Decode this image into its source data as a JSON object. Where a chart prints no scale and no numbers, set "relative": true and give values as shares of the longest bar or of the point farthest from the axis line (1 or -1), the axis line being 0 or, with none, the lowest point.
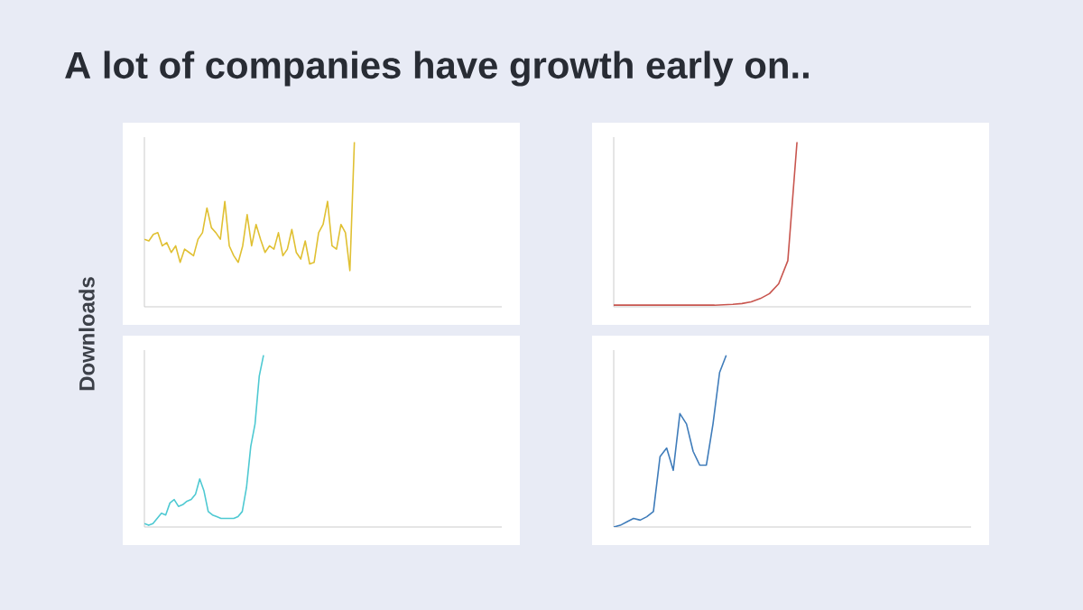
{
  "chart_data": [
    {
      "type": "line",
      "title": "A lot of companies have growth early on..",
      "annotations": [
        "Downloads"
      ],
      "relative": true,
      "categories": [
        null,
        null,
        null,
        null,
        null,
        null,
        null,
        null,
        null,
        null,
        null,
        null,
        null,
        null,
        null,
        null,
        null,
        null,
        null,
        null,
        null,
        null,
        null,
        null,
        null,
        null,
        null,
        null,
        null,
        null,
        null,
        null,
        null,
        null,
        null,
        null,
        null,
        null,
        null,
        null,
        null,
        null,
        null,
        null,
        null,
        null,
        null,
        null,
        null,
        null,
        null,
        null,
        null,
        null,
        null,
        null,
        null,
        null,
        null,
        null,
        null,
        null,
        null,
        null,
        null,
        null,
        null,
        null,
        null,
        null,
        null,
        null,
        null,
        null,
        null,
        null,
        null,
        null,
        null,
        null,
        null
      ],
      "series": [
        {
          "color": "#e0c032",
          "values": [
            0.41,
            0.4,
            0.44,
            0.45,
            0.37,
            0.39,
            0.33,
            0.37,
            0.27,
            0.35,
            0.33,
            0.31,
            0.41,
            0.45,
            0.6,
            0.48,
            0.45,
            0.41,
            0.64,
            0.37,
            0.31,
            0.27,
            0.37,
            0.56,
            0.37,
            0.5,
            0.41,
            0.33,
            0.37,
            0.35,
            0.45,
            0.31,
            0.35,
            0.47,
            0.33,
            0.29,
            0.4,
            0.26,
            0.27,
            0.45,
            0.5,
            0.64,
            0.37,
            0.35,
            0.5,
            0.45,
            0.22,
            1,
            null,
            null,
            null,
            null,
            null,
            null,
            null,
            null,
            null,
            null,
            null,
            null,
            null,
            null,
            null,
            null,
            null,
            null,
            null,
            null,
            null,
            null,
            null,
            null,
            null,
            null,
            null,
            null,
            null,
            null,
            null,
            null,
            null
          ]
        }
      ]
    },
    {
      "type": "line",
      "relative": true,
      "categories": [
        null,
        null,
        null,
        null,
        null,
        null,
        null,
        null,
        null,
        null,
        null,
        null,
        null,
        null,
        null,
        null,
        null,
        null,
        null,
        null,
        null,
        null,
        null,
        null,
        null,
        null,
        null,
        null,
        null,
        null,
        null,
        null,
        null,
        null,
        null,
        null,
        null,
        null,
        null,
        null
      ],
      "series": [
        {
          "color": "#c8554e",
          "values": [
            0.01,
            0.01,
            0.01,
            0.01,
            0.01,
            0.01,
            0.01,
            0.01,
            0.01,
            0.01,
            0.01,
            0.01,
            0.012,
            0.015,
            0.02,
            0.03,
            0.05,
            0.08,
            0.14,
            0.28,
            1,
            null,
            null,
            null,
            null,
            null,
            null,
            null,
            null,
            null,
            null,
            null,
            null,
            null,
            null,
            null,
            null,
            null,
            null,
            null
          ]
        }
      ]
    },
    {
      "type": "line",
      "relative": true,
      "categories": [
        null,
        null,
        null,
        null,
        null,
        null,
        null,
        null,
        null,
        null,
        null,
        null,
        null,
        null,
        null,
        null,
        null,
        null,
        null,
        null,
        null,
        null,
        null,
        null,
        null,
        null,
        null,
        null,
        null,
        null,
        null,
        null,
        null,
        null,
        null,
        null,
        null,
        null,
        null,
        null,
        null,
        null,
        null,
        null,
        null,
        null,
        null,
        null,
        null,
        null,
        null,
        null,
        null,
        null,
        null,
        null,
        null,
        null,
        null,
        null,
        null,
        null,
        null,
        null,
        null,
        null,
        null,
        null,
        null,
        null,
        null,
        null,
        null,
        null,
        null,
        null,
        null,
        null,
        null,
        null,
        null,
        null,
        null,
        null,
        null
      ],
      "series": [
        {
          "color": "#4ec9d2",
          "values": [
            0.02,
            0.01,
            0.02,
            0.05,
            0.08,
            0.07,
            0.14,
            0.16,
            0.12,
            0.13,
            0.15,
            0.16,
            0.19,
            0.28,
            0.21,
            0.09,
            0.07,
            0.06,
            0.05,
            0.05,
            0.05,
            0.05,
            0.06,
            0.09,
            0.23,
            0.47,
            0.6,
            0.88,
            1,
            null,
            null,
            null,
            null,
            null,
            null,
            null,
            null,
            null,
            null,
            null,
            null,
            null,
            null,
            null,
            null,
            null,
            null,
            null,
            null,
            null,
            null,
            null,
            null,
            null,
            null,
            null,
            null,
            null,
            null,
            null,
            null,
            null,
            null,
            null,
            null,
            null,
            null,
            null,
            null,
            null,
            null,
            null,
            null,
            null,
            null,
            null,
            null,
            null,
            null,
            null,
            null,
            null,
            null,
            null,
            null
          ]
        }
      ]
    },
    {
      "type": "line",
      "relative": true,
      "categories": [
        null,
        null,
        null,
        null,
        null,
        null,
        null,
        null,
        null,
        null,
        null,
        null,
        null,
        null,
        null,
        null,
        null,
        null,
        null,
        null,
        null,
        null,
        null,
        null,
        null,
        null,
        null,
        null,
        null,
        null,
        null,
        null,
        null,
        null,
        null,
        null,
        null,
        null,
        null,
        null,
        null,
        null,
        null,
        null,
        null,
        null,
        null,
        null,
        null,
        null,
        null,
        null,
        null,
        null,
        null
      ],
      "series": [
        {
          "color": "#3f7cba",
          "values": [
            0,
            0.01,
            0.03,
            0.05,
            0.04,
            0.06,
            0.09,
            0.41,
            0.46,
            0.33,
            0.66,
            0.6,
            0.44,
            0.36,
            0.36,
            0.6,
            0.9,
            1,
            null,
            null,
            null,
            null,
            null,
            null,
            null,
            null,
            null,
            null,
            null,
            null,
            null,
            null,
            null,
            null,
            null,
            null,
            null,
            null,
            null,
            null,
            null,
            null,
            null,
            null,
            null,
            null,
            null,
            null,
            null,
            null,
            null,
            null,
            null,
            null,
            null
          ]
        }
      ]
    }
  ]
}
